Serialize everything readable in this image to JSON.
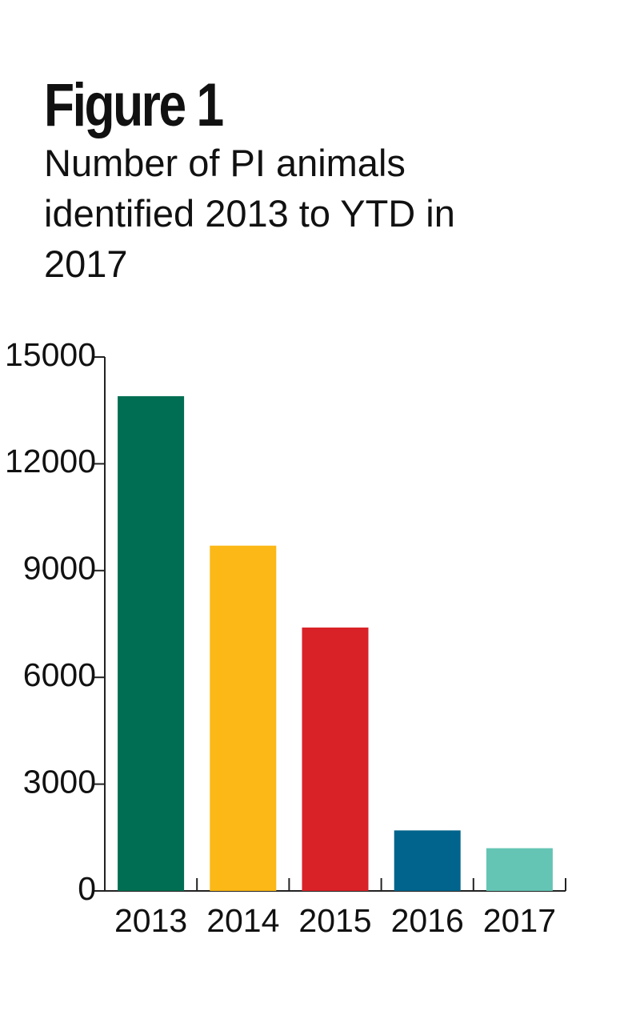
{
  "chart_data": {
    "type": "bar",
    "title": "Figure 1",
    "subtitle": "Number of PI animals identified 2013 to YTD in 2017",
    "categories": [
      "2013",
      "2014",
      "2015",
      "2016",
      "2017"
    ],
    "values": [
      13900,
      9700,
      7400,
      1700,
      1200
    ],
    "colors": [
      "#006e52",
      "#fbb816",
      "#d92228",
      "#00648c",
      "#64c5b4"
    ],
    "ylim": [
      0,
      15000
    ],
    "yticks": [
      0,
      3000,
      6000,
      9000,
      12000,
      15000
    ],
    "grid": false
  }
}
